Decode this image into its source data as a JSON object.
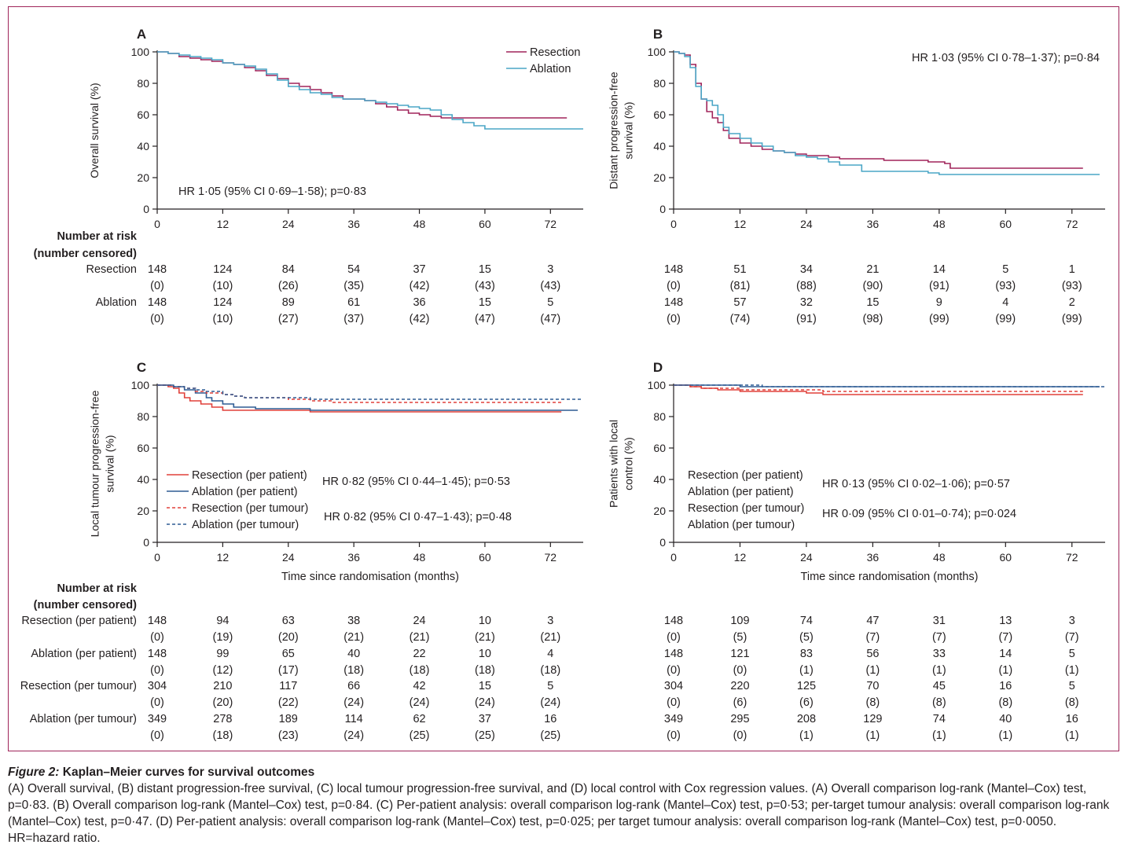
{
  "figure": {
    "caption_prefix": "Figure 2:",
    "caption_title": " Kaplan–Meier curves for survival outcomes",
    "caption_text": "(A) Overall survival, (B) distant progression-free survival, (C) local tumour progression-free survival, and (D) local control with Cox regression values. (A) Overall comparison log-rank (Mantel–Cox) test, p=0·83. (B) Overall comparison log-rank (Mantel–Cox) test, p=0·84. (C) Per-patient analysis: overall comparison log-rank (Mantel–Cox) test, p=0·53; per-target tumour analysis: overall comparison log-rank (Mantel–Cox) test, p=0·47. (D) Per-patient analysis: overall comparison log-rank (Mantel–Cox) test, p=0·025; per target tumour analysis: overall comparison log-rank (Mantel–Cox) test, p=0·0050. HR=hazard ratio."
  },
  "colors": {
    "resection": "#a0245a",
    "ablation": "#4aa6c6",
    "resection_c": "#e0403a",
    "ablation_c": "#2e5c94",
    "frame": "#a0245a"
  },
  "risk_header": [
    "Number at risk",
    "(number censored)"
  ],
  "chart_data": [
    {
      "panel": "A",
      "type": "line",
      "ylabel": "Overall survival (%)",
      "xlabel": "",
      "xlim": [
        0,
        78
      ],
      "ylim": [
        0,
        100
      ],
      "xticks": [
        0,
        12,
        24,
        36,
        48,
        60,
        72
      ],
      "yticks": [
        0,
        20,
        40,
        60,
        80,
        100
      ],
      "legend_position": "top-right",
      "annotations": [
        "HR 1·05 (95% CI 0·69–1·58); p=0·83"
      ],
      "series": [
        {
          "name": "Resection",
          "color": "resection",
          "dash": false,
          "x": [
            0,
            2,
            4,
            6,
            8,
            10,
            12,
            14,
            16,
            18,
            20,
            22,
            24,
            26,
            28,
            30,
            32,
            34,
            36,
            38,
            40,
            42,
            44,
            46,
            48,
            50,
            52,
            54,
            56,
            60,
            66,
            72,
            75
          ],
          "y": [
            100,
            99,
            97,
            96,
            95,
            94,
            93,
            92,
            90,
            88,
            85,
            83,
            80,
            78,
            76,
            74,
            72,
            70,
            70,
            69,
            67,
            65,
            63,
            61,
            60,
            59,
            58,
            58,
            58,
            58,
            58,
            58,
            58
          ]
        },
        {
          "name": "Ablation",
          "color": "ablation",
          "dash": false,
          "x": [
            0,
            2,
            4,
            6,
            8,
            10,
            12,
            14,
            16,
            18,
            20,
            22,
            24,
            26,
            28,
            30,
            32,
            34,
            36,
            38,
            40,
            42,
            44,
            46,
            48,
            50,
            52,
            54,
            56,
            58,
            60,
            66,
            72,
            78
          ],
          "y": [
            100,
            99,
            98,
            97,
            96,
            95,
            93,
            92,
            91,
            89,
            86,
            82,
            78,
            76,
            74,
            73,
            71,
            70,
            70,
            69,
            68,
            67,
            66,
            65,
            64,
            63,
            60,
            57,
            55,
            53,
            51,
            51,
            51,
            51
          ]
        }
      ],
      "risk_table": [
        {
          "label": "Resection",
          "at_risk": [
            "148",
            "124",
            "84",
            "54",
            "37",
            "15",
            "3"
          ],
          "censored": [
            "(0)",
            "(10)",
            "(26)",
            "(35)",
            "(42)",
            "(43)",
            "(43)"
          ]
        },
        {
          "label": "Ablation",
          "at_risk": [
            "148",
            "124",
            "89",
            "61",
            "36",
            "15",
            "5"
          ],
          "censored": [
            "(0)",
            "(10)",
            "(27)",
            "(37)",
            "(42)",
            "(47)",
            "(47)"
          ]
        }
      ]
    },
    {
      "panel": "B",
      "type": "line",
      "ylabel": "Distant progression-free survival (%)",
      "xlabel": "",
      "xlim": [
        0,
        78
      ],
      "ylim": [
        0,
        100
      ],
      "xticks": [
        0,
        12,
        24,
        36,
        48,
        60,
        72
      ],
      "yticks": [
        0,
        20,
        40,
        60,
        80,
        100
      ],
      "annotations": [
        "HR 1·03 (95% CI 0·78–1·37); p=0·84"
      ],
      "series": [
        {
          "name": "Resection",
          "color": "resection",
          "dash": false,
          "x": [
            0,
            1,
            2,
            3,
            4,
            5,
            6,
            7,
            8,
            9,
            10,
            12,
            14,
            16,
            18,
            20,
            22,
            24,
            26,
            28,
            30,
            34,
            38,
            42,
            46,
            49,
            50,
            60,
            72,
            74
          ],
          "y": [
            100,
            99,
            98,
            92,
            80,
            70,
            62,
            58,
            55,
            50,
            45,
            42,
            40,
            38,
            37,
            36,
            35,
            34,
            34,
            33,
            32,
            32,
            31,
            31,
            30,
            29,
            26,
            26,
            26,
            26
          ]
        },
        {
          "name": "Ablation",
          "color": "ablation",
          "dash": false,
          "x": [
            0,
            1,
            2,
            3,
            4,
            5,
            6,
            7,
            8,
            9,
            10,
            12,
            14,
            16,
            18,
            20,
            22,
            24,
            26,
            28,
            30,
            34,
            38,
            42,
            46,
            48,
            60,
            72,
            77
          ],
          "y": [
            100,
            99,
            97,
            90,
            78,
            70,
            69,
            66,
            60,
            52,
            48,
            45,
            42,
            40,
            37,
            36,
            34,
            33,
            32,
            30,
            28,
            24,
            24,
            24,
            23,
            22,
            22,
            22,
            22
          ]
        }
      ],
      "risk_table": [
        {
          "label": "",
          "at_risk": [
            "148",
            "51",
            "34",
            "21",
            "14",
            "5",
            "1"
          ],
          "censored": [
            "(0)",
            "(81)",
            "(88)",
            "(90)",
            "(91)",
            "(93)",
            "(93)"
          ]
        },
        {
          "label": "",
          "at_risk": [
            "148",
            "57",
            "32",
            "15",
            "9",
            "4",
            "2"
          ],
          "censored": [
            "(0)",
            "(74)",
            "(91)",
            "(98)",
            "(99)",
            "(99)",
            "(99)"
          ]
        }
      ]
    },
    {
      "panel": "C",
      "type": "line",
      "ylabel": "Local tumour progression-free survival (%)",
      "xlabel": "Time since randomisation (months)",
      "xlim": [
        0,
        78
      ],
      "ylim": [
        0,
        100
      ],
      "xticks": [
        0,
        12,
        24,
        36,
        48,
        60,
        72
      ],
      "yticks": [
        0,
        20,
        40,
        60,
        80,
        100
      ],
      "legend_position": "bottom-left",
      "annotations": [
        "HR 0·82 (95% CI 0·44–1·45); p=0·53",
        "HR 0·82 (95% CI 0·47–1·43); p=0·48"
      ],
      "series": [
        {
          "name": "Resection (per patient)",
          "color": "resection_c",
          "dash": false,
          "x": [
            0,
            2,
            3,
            4,
            5,
            6,
            8,
            10,
            12,
            16,
            20,
            24,
            28,
            36,
            48,
            60,
            72,
            74
          ],
          "y": [
            100,
            99,
            98,
            95,
            92,
            90,
            88,
            86,
            84,
            84,
            84,
            84,
            83,
            83,
            83,
            83,
            83,
            83
          ]
        },
        {
          "name": "Ablation (per patient)",
          "color": "ablation_c",
          "dash": false,
          "x": [
            0,
            3,
            5,
            7,
            9,
            10,
            12,
            14,
            16,
            18,
            20,
            24,
            28,
            36,
            48,
            60,
            72,
            77
          ],
          "y": [
            100,
            99,
            97,
            95,
            92,
            90,
            88,
            86,
            86,
            85,
            85,
            85,
            84,
            84,
            84,
            84,
            84,
            84
          ]
        },
        {
          "name": "Resection (per tumour)",
          "color": "resection_c",
          "dash": true,
          "x": [
            0,
            3,
            5,
            7,
            9,
            12,
            14,
            16,
            20,
            24,
            28,
            32,
            36,
            48,
            60,
            72,
            74
          ],
          "y": [
            100,
            99,
            98,
            96,
            95,
            94,
            93,
            92,
            92,
            91,
            90,
            89,
            89,
            89,
            89,
            89,
            89
          ]
        },
        {
          "name": "Ablation (per tumour)",
          "color": "ablation_c",
          "dash": true,
          "x": [
            0,
            3,
            5,
            7,
            9,
            12,
            14,
            16,
            20,
            24,
            28,
            36,
            48,
            60,
            72,
            78
          ],
          "y": [
            100,
            99,
            98,
            97,
            96,
            94,
            93,
            92,
            92,
            92,
            91,
            91,
            91,
            91,
            91,
            91
          ]
        }
      ],
      "risk_table": [
        {
          "label": "Resection (per patient)",
          "at_risk": [
            "148",
            "94",
            "63",
            "38",
            "24",
            "10",
            "3"
          ],
          "censored": [
            "(0)",
            "(19)",
            "(20)",
            "(21)",
            "(21)",
            "(21)",
            "(21)"
          ]
        },
        {
          "label": "Ablation (per patient)",
          "at_risk": [
            "148",
            "99",
            "65",
            "40",
            "22",
            "10",
            "4"
          ],
          "censored": [
            "(0)",
            "(12)",
            "(17)",
            "(18)",
            "(18)",
            "(18)",
            "(18)"
          ]
        },
        {
          "label": "Resection (per tumour)",
          "at_risk": [
            "304",
            "210",
            "117",
            "66",
            "42",
            "15",
            "5"
          ],
          "censored": [
            "(0)",
            "(20)",
            "(22)",
            "(24)",
            "(24)",
            "(24)",
            "(24)"
          ]
        },
        {
          "label": "Ablation (per tumour)",
          "at_risk": [
            "349",
            "278",
            "189",
            "114",
            "62",
            "37",
            "16"
          ],
          "censored": [
            "(0)",
            "(18)",
            "(23)",
            "(24)",
            "(25)",
            "(25)",
            "(25)"
          ]
        }
      ]
    },
    {
      "panel": "D",
      "type": "line",
      "ylabel": "Patients with local control (%)",
      "xlabel": "Time since randomisation (months)",
      "xlim": [
        0,
        78
      ],
      "ylim": [
        0,
        100
      ],
      "xticks": [
        0,
        12,
        24,
        36,
        48,
        60,
        72
      ],
      "yticks": [
        0,
        20,
        40,
        60,
        80,
        100
      ],
      "legend_position": "bottom-left",
      "annotations": [
        "HR 0·13 (95% CI 0·02–1·06); p=0·57",
        "HR 0·09 (95% CI 0·01–0·74); p=0·024"
      ],
      "series": [
        {
          "name": "Resection (per patient)",
          "color": "resection_c",
          "dash": false,
          "x": [
            0,
            3,
            5,
            8,
            12,
            16,
            20,
            24,
            27,
            36,
            48,
            60,
            72,
            74
          ],
          "y": [
            100,
            99,
            98,
            97,
            96,
            96,
            96,
            95,
            94,
            94,
            94,
            94,
            94,
            94
          ]
        },
        {
          "name": "Ablation (per patient)",
          "color": "ablation_c",
          "dash": false,
          "x": [
            0,
            10,
            12,
            24,
            36,
            48,
            60,
            72,
            77
          ],
          "y": [
            100,
            100,
            99,
            99,
            99,
            99,
            99,
            99,
            99
          ]
        },
        {
          "name": "Resection (per tumour)",
          "color": "resection_c",
          "dash": true,
          "x": [
            0,
            3,
            5,
            8,
            12,
            20,
            27,
            36,
            48,
            60,
            72,
            74
          ],
          "y": [
            100,
            99,
            98,
            98,
            97,
            97,
            96,
            96,
            96,
            96,
            96,
            96
          ]
        },
        {
          "name": "Ablation (per tumour)",
          "color": "ablation_c",
          "dash": true,
          "x": [
            0,
            12,
            16,
            24,
            36,
            48,
            60,
            72,
            78
          ],
          "y": [
            100,
            100,
            99,
            99,
            99,
            99,
            99,
            99,
            99
          ]
        }
      ],
      "risk_table": [
        {
          "label": "",
          "at_risk": [
            "148",
            "109",
            "74",
            "47",
            "31",
            "13",
            "3"
          ],
          "censored": [
            "(0)",
            "(5)",
            "(5)",
            "(7)",
            "(7)",
            "(7)",
            "(7)"
          ]
        },
        {
          "label": "",
          "at_risk": [
            "148",
            "121",
            "83",
            "56",
            "33",
            "14",
            "5"
          ],
          "censored": [
            "(0)",
            "(0)",
            "(1)",
            "(1)",
            "(1)",
            "(1)",
            "(1)"
          ]
        },
        {
          "label": "",
          "at_risk": [
            "304",
            "220",
            "125",
            "70",
            "45",
            "16",
            "5"
          ],
          "censored": [
            "(0)",
            "(6)",
            "(6)",
            "(8)",
            "(8)",
            "(8)",
            "(8)"
          ]
        },
        {
          "label": "",
          "at_risk": [
            "349",
            "295",
            "208",
            "129",
            "74",
            "40",
            "16"
          ],
          "censored": [
            "(0)",
            "(0)",
            "(1)",
            "(1)",
            "(1)",
            "(1)",
            "(1)"
          ]
        }
      ]
    }
  ]
}
